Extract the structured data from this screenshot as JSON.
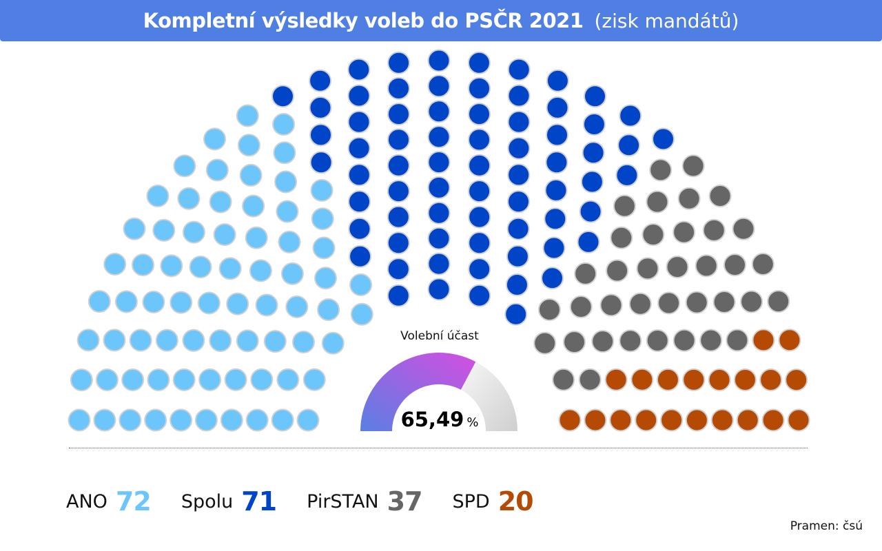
{
  "header": {
    "title": "Kompletní výsledky voleb do PSČR 2021",
    "subtitle": "(zisk mandátů)"
  },
  "turnout": {
    "label": "Volební účast",
    "value": "65,49",
    "unit": "%",
    "fraction": 0.6549,
    "fill_colors": [
      "#5a7fe4",
      "#d44ee0"
    ],
    "rest_colors": [
      "#f7f7f7",
      "#cfcfcf"
    ]
  },
  "legend": [
    {
      "name": "ANO",
      "count": "72",
      "color": "#6cc6fb"
    },
    {
      "name": "Spolu",
      "count": "71",
      "color": "#0044c8"
    },
    {
      "name": "PirSTAN",
      "count": "37",
      "color": "#666666"
    },
    {
      "name": "SPD",
      "count": "20",
      "color": "#b44a04"
    }
  ],
  "source": "Pramen: čsú",
  "chart_data": {
    "type": "parliament",
    "total_seats": 200,
    "series": [
      {
        "name": "ANO",
        "value": 72,
        "color": "#6cc6fb"
      },
      {
        "name": "Spolu",
        "value": 71,
        "color": "#0044c8"
      },
      {
        "name": "PirSTAN",
        "value": 37,
        "color": "#666666"
      },
      {
        "name": "SPD",
        "value": 20,
        "color": "#b44a04"
      }
    ]
  }
}
